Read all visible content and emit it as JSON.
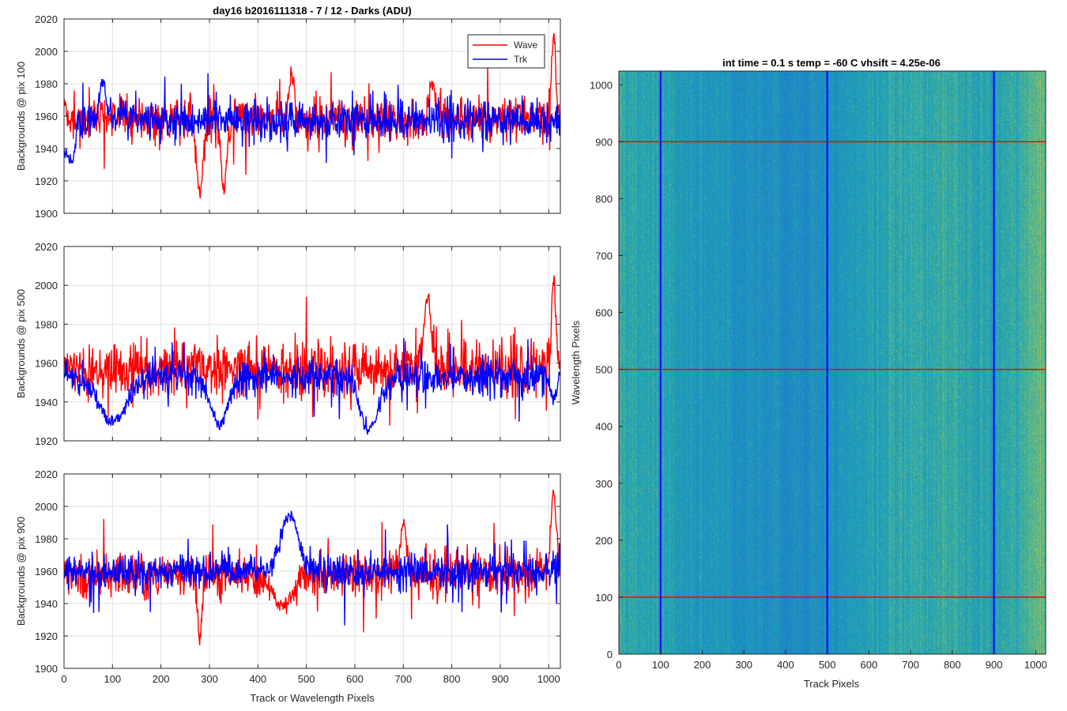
{
  "figure": {
    "title": "day16 b2016111318 - 7 / 12 - Darks (ADU)"
  },
  "colors": {
    "wave": "#ff0000",
    "trk": "#0000ff",
    "grid": "#e0e0e0",
    "axis": "#262626",
    "heat_low": "#1b6fd6",
    "heat_mid": "#22a6b3",
    "heat_high": "#cfd53a"
  },
  "chart_data": [
    {
      "type": "line",
      "title": "",
      "xlabel": "",
      "ylabel": "Backgrounds @ pix 100",
      "xlim": [
        0,
        1024
      ],
      "ylim": [
        1900,
        2020
      ],
      "xticks": [
        0,
        100,
        200,
        300,
        400,
        500,
        600,
        700,
        800,
        900,
        1000
      ],
      "yticks": [
        1900,
        1920,
        1940,
        1960,
        1980,
        2000,
        2020
      ],
      "xticklabels_visible": false,
      "grid": true,
      "legend": "top-right",
      "series": [
        {
          "name": "Wave",
          "color": "#ff0000",
          "base": 1958,
          "noise": 9,
          "features": [
            [
              0,
              6,
              1970
            ],
            [
              280,
              10,
              1913
            ],
            [
              330,
              8,
              1915
            ],
            [
              470,
              8,
              1985
            ],
            [
              760,
              8,
              1982
            ],
            [
              1010,
              6,
              2012
            ]
          ]
        },
        {
          "name": "Trk",
          "color": "#0000ff",
          "base": 1957,
          "noise": 8,
          "features": [
            [
              0,
              12,
              1938
            ],
            [
              15,
              10,
              1930
            ],
            [
              80,
              10,
              1982
            ]
          ]
        }
      ]
    },
    {
      "type": "line",
      "title": "",
      "xlabel": "",
      "ylabel": "Backgrounds @ pix 500",
      "xlim": [
        0,
        1024
      ],
      "ylim": [
        1920,
        2020
      ],
      "xticks": [
        0,
        100,
        200,
        300,
        400,
        500,
        600,
        700,
        800,
        900,
        1000
      ],
      "yticks": [
        1920,
        1940,
        1960,
        1980,
        2000,
        2020
      ],
      "xticklabels_visible": false,
      "grid": true,
      "legend": "none",
      "series": [
        {
          "name": "Wave",
          "color": "#ff0000",
          "base": 1957,
          "noise": 9,
          "features": [
            [
              0,
              10,
              1960
            ],
            [
              750,
              10,
              1995
            ],
            [
              1010,
              6,
              2002
            ]
          ]
        },
        {
          "name": "Trk",
          "color": "#0000ff",
          "base": 1953,
          "noise": 6,
          "features": [
            [
              100,
              40,
              1930
            ],
            [
              320,
              25,
              1928
            ],
            [
              630,
              25,
              1925
            ],
            [
              1010,
              10,
              1942
            ]
          ]
        }
      ]
    },
    {
      "type": "line",
      "title": "",
      "xlabel": "Track or Wavelength Pixels",
      "ylabel": "Backgrounds @ pix 900",
      "xlim": [
        0,
        1024
      ],
      "ylim": [
        1900,
        2020
      ],
      "xticks": [
        0,
        100,
        200,
        300,
        400,
        500,
        600,
        700,
        800,
        900,
        1000
      ],
      "yticks": [
        1900,
        1920,
        1940,
        1960,
        1980,
        2000,
        2020
      ],
      "xticklabels_visible": true,
      "grid": true,
      "legend": "none",
      "series": [
        {
          "name": "Wave",
          "color": "#ff0000",
          "base": 1958,
          "noise": 9,
          "features": [
            [
              280,
              6,
              1917
            ],
            [
              450,
              30,
              1938
            ],
            [
              700,
              8,
              1992
            ],
            [
              1010,
              8,
              2008
            ]
          ]
        },
        {
          "name": "Trk",
          "color": "#0000ff",
          "base": 1960,
          "noise": 7,
          "features": [
            [
              465,
              25,
              1995
            ]
          ]
        }
      ]
    },
    {
      "type": "heatmap",
      "title": "int time = 0.1 s   temp = -60 C   vhsift = 4.25e-06",
      "xlabel": "Track Pixels",
      "ylabel": "Wavelength Pixels",
      "xlim": [
        0,
        1024
      ],
      "ylim": [
        0,
        1024
      ],
      "xticks": [
        0,
        100,
        200,
        300,
        400,
        500,
        600,
        700,
        800,
        900,
        1000
      ],
      "yticks": [
        0,
        100,
        200,
        300,
        400,
        500,
        600,
        700,
        800,
        900,
        1000
      ],
      "grid": false,
      "column_profile": [
        [
          0,
          0.55
        ],
        [
          100,
          0.45
        ],
        [
          250,
          0.35
        ],
        [
          400,
          0.28
        ],
        [
          500,
          0.3
        ],
        [
          600,
          0.45
        ],
        [
          750,
          0.55
        ],
        [
          900,
          0.45
        ],
        [
          1000,
          0.65
        ],
        [
          1024,
          0.7
        ]
      ],
      "vertical_markers": [
        100,
        500,
        900
      ],
      "horizontal_markers": [
        100,
        500,
        900
      ],
      "vertical_marker_color": "#0000ff",
      "horizontal_marker_color": "#ff0000"
    }
  ]
}
